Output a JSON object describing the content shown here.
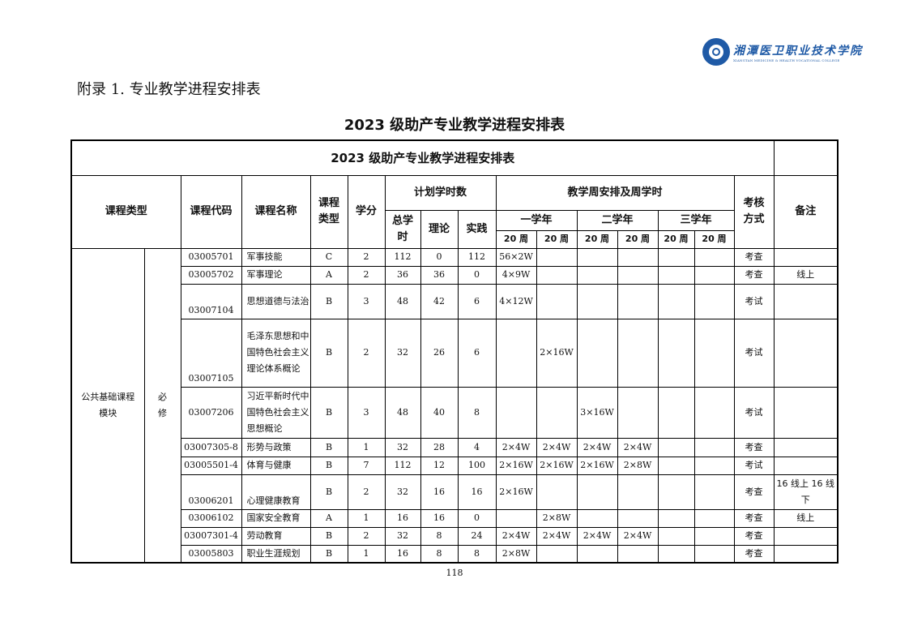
{
  "logo": {
    "name_cn": "湘潭医卫职业技术学院",
    "name_en": "XIANGTAN MEDICINE & HEALTH VOCATIONAL COLLEGE"
  },
  "appendix_heading": "附录 1. 专业教学进程安排表",
  "doc_title": "2023 级助产专业教学进程安排表",
  "table": {
    "title": "2023 级助产专业教学进程安排表",
    "headers": {
      "course_category": "课程类型",
      "course_code": "课程代码",
      "course_name": "课程名称",
      "course_type": "课程类型",
      "credits": "学分",
      "planned_hours": "计划学时数",
      "total_hours": "总学时",
      "theory": "理论",
      "practice": "实践",
      "weekly_schedule": "教学周安排及周学时",
      "year1": "一学年",
      "year2": "二学年",
      "year3": "三学年",
      "weeks": [
        "20 周",
        "20 周",
        "20 周",
        "20 周",
        "20 周",
        "20 周"
      ],
      "assessment": "考核方式",
      "remarks": "备注"
    },
    "group": {
      "module": "公共基础课程模块",
      "requirement": "必修"
    },
    "rows": [
      {
        "code": "03005701",
        "name": "军事技能",
        "type": "C",
        "credits": "2",
        "total": "112",
        "theory": "0",
        "practice": "112",
        "weeks": [
          "56×2W",
          "",
          "",
          "",
          "",
          ""
        ],
        "assessment": "考查",
        "remarks": ""
      },
      {
        "code": "03005702",
        "name": "军事理论",
        "type": "A",
        "credits": "2",
        "total": "36",
        "theory": "36",
        "practice": "0",
        "weeks": [
          "4×9W",
          "",
          "",
          "",
          "",
          ""
        ],
        "assessment": "考查",
        "remarks": "线上"
      },
      {
        "code": "03007104",
        "name": "思想道德与法治",
        "type": "B",
        "credits": "3",
        "total": "48",
        "theory": "42",
        "practice": "6",
        "weeks": [
          "4×12W",
          "",
          "",
          "",
          "",
          ""
        ],
        "assessment": "考试",
        "remarks": ""
      },
      {
        "code": "03007105",
        "name": "毛泽东思想和中国特色社会主义理论体系概论",
        "type": "B",
        "credits": "2",
        "total": "32",
        "theory": "26",
        "practice": "6",
        "weeks": [
          "",
          "2×16W",
          "",
          "",
          "",
          ""
        ],
        "assessment": "考试",
        "remarks": ""
      },
      {
        "code": "03007206",
        "name": "习近平新时代中国特色社会主义思想概论",
        "type": "B",
        "credits": "3",
        "total": "48",
        "theory": "40",
        "practice": "8",
        "weeks": [
          "",
          "",
          "3×16W",
          "",
          "",
          ""
        ],
        "assessment": "考试",
        "remarks": ""
      },
      {
        "code": "03007305-8",
        "name": "形势与政策",
        "type": "B",
        "credits": "1",
        "total": "32",
        "theory": "28",
        "practice": "4",
        "weeks": [
          "2×4W",
          "2×4W",
          "2×4W",
          "2×4W",
          "",
          ""
        ],
        "assessment": "考查",
        "remarks": ""
      },
      {
        "code": "03005501-4",
        "name": "体育与健康",
        "type": "B",
        "credits": "7",
        "total": "112",
        "theory": "12",
        "practice": "100",
        "weeks": [
          "2×16W",
          "2×16W",
          "2×16W",
          "2×8W",
          "",
          ""
        ],
        "assessment": "考试",
        "remarks": ""
      },
      {
        "code": "03006201",
        "name": "心理健康教育",
        "type": "B",
        "credits": "2",
        "total": "32",
        "theory": "16",
        "practice": "16",
        "weeks": [
          "2×16W",
          "",
          "",
          "",
          "",
          ""
        ],
        "assessment": "考查",
        "remarks": "16 线上 16 线下"
      },
      {
        "code": "03006102",
        "name": "国家安全教育",
        "type": "A",
        "credits": "1",
        "total": "16",
        "theory": "16",
        "practice": "0",
        "weeks": [
          "",
          "2×8W",
          "",
          "",
          "",
          ""
        ],
        "assessment": "考查",
        "remarks": "线上"
      },
      {
        "code": "03007301-4",
        "name": "劳动教育",
        "type": "B",
        "credits": "2",
        "total": "32",
        "theory": "8",
        "practice": "24",
        "weeks": [
          "2×4W",
          "2×4W",
          "2×4W",
          "2×4W",
          "",
          ""
        ],
        "assessment": "考查",
        "remarks": ""
      },
      {
        "code": "03005803",
        "name": "职业生涯规划",
        "type": "B",
        "credits": "1",
        "total": "16",
        "theory": "8",
        "practice": "8",
        "weeks": [
          "2×8W",
          "",
          "",
          "",
          "",
          ""
        ],
        "assessment": "考查",
        "remarks": ""
      }
    ]
  },
  "page_number": "118"
}
